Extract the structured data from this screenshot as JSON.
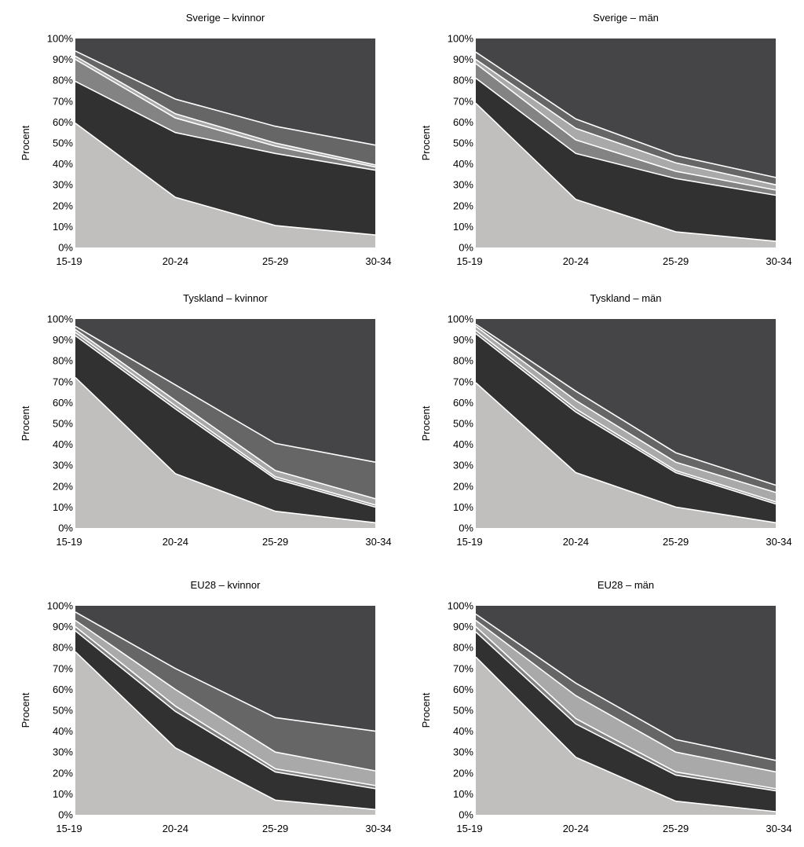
{
  "chart_data": [
    {
      "type": "area",
      "stacked": "percent",
      "title": "Sverige – kvinnor",
      "ylabel": "Procent",
      "xlabel": "",
      "categories": [
        "15-19",
        "20-24",
        "25-29",
        "30-34"
      ],
      "yticks": [
        "0%",
        "10%",
        "20%",
        "30%",
        "40%",
        "50%",
        "60%",
        "70%",
        "80%",
        "90%",
        "100%"
      ],
      "ylim": [
        0,
        100
      ],
      "legend": "none",
      "grid": false,
      "series": [
        {
          "values": [
            59.5,
            24.0,
            10.5,
            6.0
          ]
        },
        {
          "values": [
            20.0,
            31.0,
            34.5,
            31.0
          ]
        },
        {
          "values": [
            10.5,
            7.0,
            3.5,
            1.5
          ]
        },
        {
          "values": [
            1.5,
            2.0,
            1.5,
            1.0
          ]
        },
        {
          "values": [
            2.5,
            7.0,
            8.0,
            9.5
          ]
        },
        {
          "values": [
            6.0,
            29.0,
            42.0,
            51.0
          ]
        }
      ]
    },
    {
      "type": "area",
      "stacked": "percent",
      "title": "Sverige – män",
      "ylabel": "Procent",
      "xlabel": "",
      "categories": [
        "15-19",
        "20-24",
        "25-29",
        "30-34"
      ],
      "yticks": [
        "0%",
        "10%",
        "20%",
        "30%",
        "40%",
        "50%",
        "60%",
        "70%",
        "80%",
        "90%",
        "100%"
      ],
      "ylim": [
        0,
        100
      ],
      "legend": "none",
      "grid": false,
      "series": [
        {
          "values": [
            69.0,
            23.0,
            7.5,
            3.0
          ]
        },
        {
          "values": [
            12.0,
            22.0,
            25.5,
            22.0
          ]
        },
        {
          "values": [
            7.0,
            6.5,
            3.5,
            2.5
          ]
        },
        {
          "values": [
            2.0,
            5.5,
            4.0,
            2.5
          ]
        },
        {
          "values": [
            3.5,
            4.5,
            3.5,
            3.5
          ]
        },
        {
          "values": [
            6.5,
            38.5,
            56.0,
            66.5
          ]
        }
      ]
    },
    {
      "type": "area",
      "stacked": "percent",
      "title": "Tyskland – kvinnor",
      "ylabel": "Procent",
      "xlabel": "",
      "categories": [
        "15-19",
        "20-24",
        "25-29",
        "30-34"
      ],
      "yticks": [
        "0%",
        "10%",
        "20%",
        "30%",
        "40%",
        "50%",
        "60%",
        "70%",
        "80%",
        "90%",
        "100%"
      ],
      "ylim": [
        0,
        100
      ],
      "legend": "none",
      "grid": false,
      "series": [
        {
          "values": [
            72.0,
            26.0,
            8.0,
            2.5
          ]
        },
        {
          "values": [
            20.0,
            31.0,
            15.5,
            7.5
          ]
        },
        {
          "values": [
            1.5,
            1.5,
            1.0,
            1.0
          ]
        },
        {
          "values": [
            1.5,
            2.5,
            3.0,
            3.0
          ]
        },
        {
          "values": [
            1.5,
            7.5,
            13.0,
            17.5
          ]
        },
        {
          "values": [
            3.5,
            31.5,
            59.5,
            68.5
          ]
        }
      ]
    },
    {
      "type": "area",
      "stacked": "percent",
      "title": "Tyskland – män",
      "ylabel": "Procent",
      "xlabel": "",
      "categories": [
        "15-19",
        "20-24",
        "25-29",
        "30-34"
      ],
      "yticks": [
        "0%",
        "10%",
        "20%",
        "30%",
        "40%",
        "50%",
        "60%",
        "70%",
        "80%",
        "90%",
        "100%"
      ],
      "ylim": [
        0,
        100
      ],
      "legend": "none",
      "grid": false,
      "series": [
        {
          "values": [
            69.5,
            26.5,
            10.0,
            2.5
          ]
        },
        {
          "values": [
            23.5,
            29.0,
            16.5,
            9.0
          ]
        },
        {
          "values": [
            1.5,
            1.5,
            1.0,
            1.0
          ]
        },
        {
          "values": [
            2.0,
            4.0,
            4.0,
            4.5
          ]
        },
        {
          "values": [
            1.0,
            4.5,
            4.5,
            3.5
          ]
        },
        {
          "values": [
            2.5,
            34.5,
            64.0,
            79.5
          ]
        }
      ]
    },
    {
      "type": "area",
      "stacked": "percent",
      "title": "EU28 – kvinnor",
      "ylabel": "Procent",
      "xlabel": "",
      "categories": [
        "15-19",
        "20-24",
        "25-29",
        "30-34"
      ],
      "yticks": [
        "0%",
        "10%",
        "20%",
        "30%",
        "40%",
        "50%",
        "60%",
        "70%",
        "80%",
        "90%",
        "100%"
      ],
      "ylim": [
        0,
        100
      ],
      "legend": "none",
      "grid": false,
      "series": [
        {
          "values": [
            78.0,
            32.0,
            7.0,
            2.5
          ]
        },
        {
          "values": [
            10.0,
            17.5,
            13.5,
            10.0
          ]
        },
        {
          "values": [
            2.0,
            2.5,
            1.5,
            1.5
          ]
        },
        {
          "values": [
            3.0,
            8.0,
            8.0,
            7.0
          ]
        },
        {
          "values": [
            4.0,
            10.0,
            16.5,
            19.0
          ]
        },
        {
          "values": [
            3.0,
            30.0,
            53.5,
            60.0
          ]
        }
      ]
    },
    {
      "type": "area",
      "stacked": "percent",
      "title": "EU28 – män",
      "ylabel": "Procent",
      "xlabel": "",
      "categories": [
        "15-19",
        "20-24",
        "25-29",
        "30-34"
      ],
      "yticks": [
        "0%",
        "10%",
        "20%",
        "30%",
        "40%",
        "50%",
        "60%",
        "70%",
        "80%",
        "90%",
        "100%"
      ],
      "ylim": [
        0,
        100
      ],
      "legend": "none",
      "grid": false,
      "series": [
        {
          "values": [
            75.5,
            27.5,
            6.5,
            1.5
          ]
        },
        {
          "values": [
            12.0,
            16.0,
            12.5,
            10.0
          ]
        },
        {
          "values": [
            2.5,
            2.5,
            1.5,
            1.0
          ]
        },
        {
          "values": [
            3.0,
            11.0,
            9.5,
            8.0
          ]
        },
        {
          "values": [
            3.0,
            6.0,
            6.0,
            5.5
          ]
        },
        {
          "values": [
            4.0,
            37.0,
            64.0,
            74.0
          ]
        }
      ]
    }
  ],
  "colors": {
    "series": [
      "#c0bfbd",
      "#313131",
      "#838383",
      "#a9a9a9",
      "#666666",
      "#454547"
    ],
    "separator": "#ffffff",
    "background": "#ffffff",
    "text": "#000000"
  }
}
